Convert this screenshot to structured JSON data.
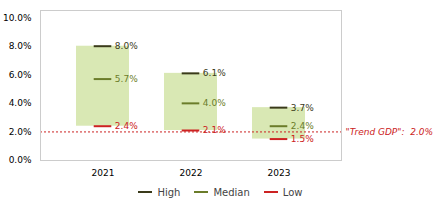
{
  "chart_data": {
    "type": "bar",
    "categories": [
      "2021",
      "2022",
      "2023"
    ],
    "color": "#d9e8b4",
    "series": [
      {
        "name": "High",
        "color": "#3a3a1a",
        "values": [
          8.0,
          6.1,
          3.7
        ],
        "value_labels": [
          "8.0%",
          "6.1%",
          "3.7%"
        ]
      },
      {
        "name": "Median",
        "color": "#6b7c2a",
        "values": [
          5.7,
          4.0,
          2.4
        ],
        "value_labels": [
          "5.7%",
          "4.0%",
          "2.4%"
        ]
      },
      {
        "name": "Low",
        "color": "#cc2222",
        "values": [
          2.4,
          2.1,
          1.5
        ],
        "value_labels": [
          "2.4%",
          "2.1%",
          "1.5%"
        ]
      }
    ],
    "data_labels": true,
    "ylim": [
      0.0,
      10.5
    ],
    "yticks": [
      {
        "value": 0.0,
        "label": "0.0%"
      },
      {
        "value": 2.0,
        "label": "2.0%"
      },
      {
        "value": 4.0,
        "label": "4.0%"
      },
      {
        "value": 6.0,
        "label": "6.0%"
      },
      {
        "value": 8.0,
        "label": "8.0%"
      },
      {
        "value": 10.0,
        "label": "10.0%"
      }
    ],
    "annotations": [
      {
        "text": "\"Trend GDP\":  2.0%",
        "y": 2.0,
        "color": "#cc2222",
        "line_style": "dotted"
      }
    ],
    "legend": "bottom",
    "grid": false
  }
}
